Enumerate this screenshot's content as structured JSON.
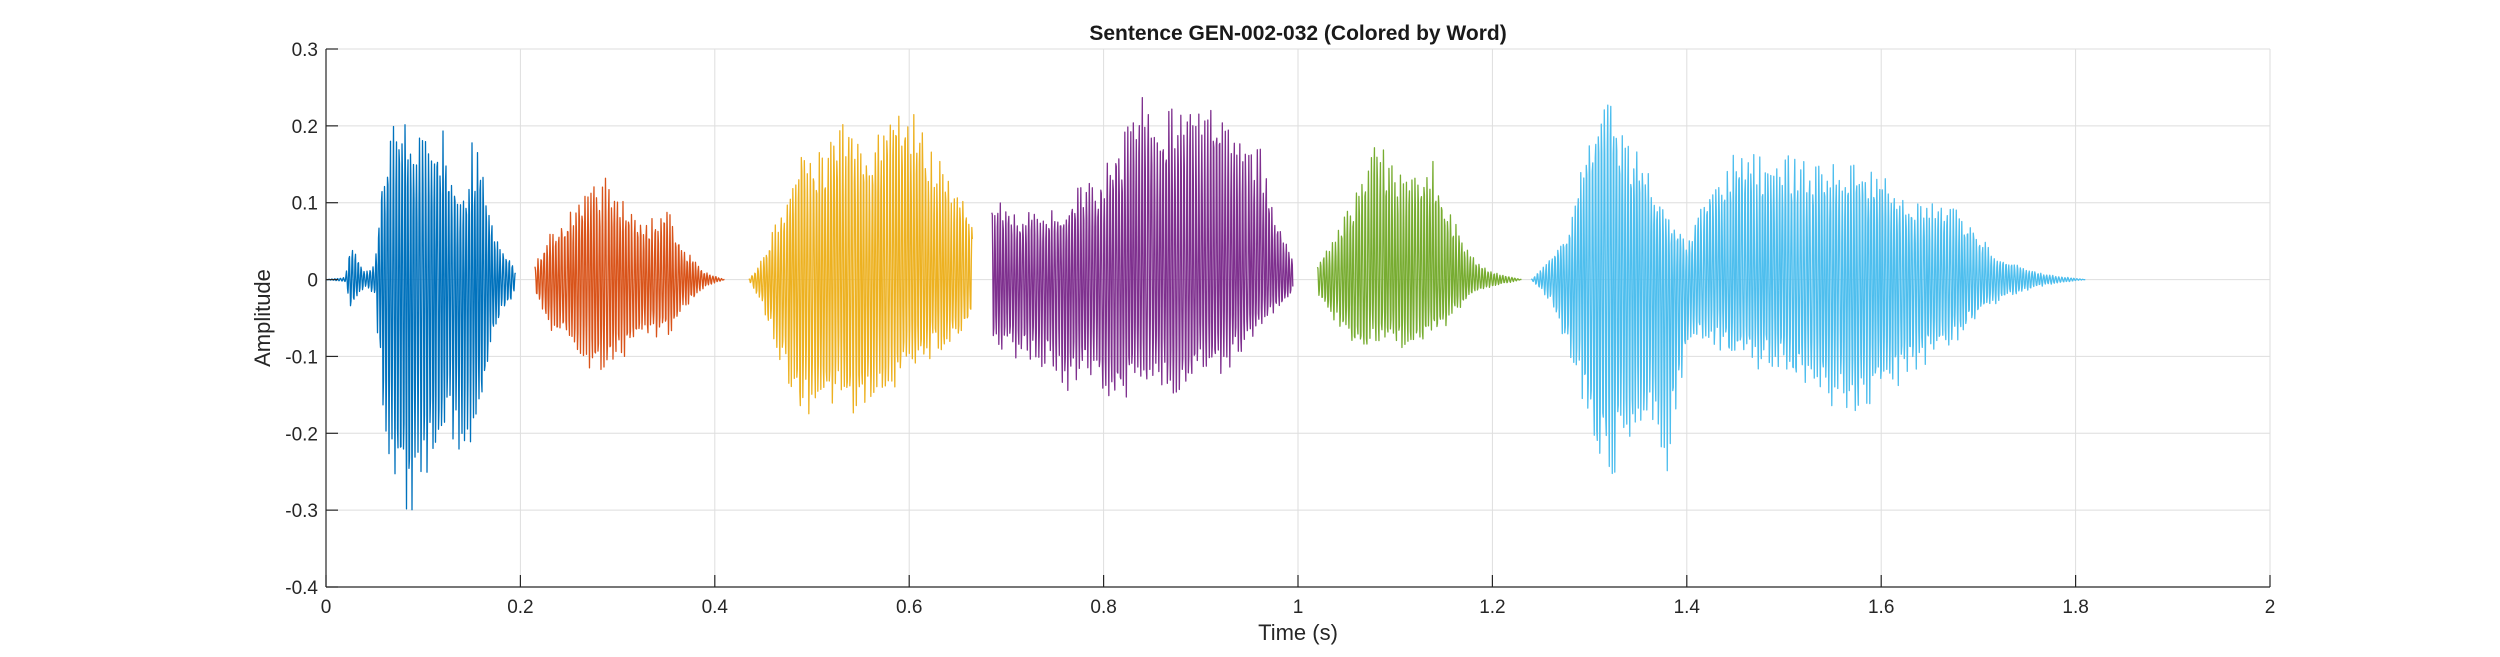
{
  "chart_data": {
    "type": "line",
    "title": "Sentence GEN-002-032 (Colored by Word)",
    "xlabel": "Time (s)",
    "ylabel": "Amplitude",
    "xlim": [
      0,
      2
    ],
    "ylim": [
      -0.4,
      0.3
    ],
    "xticks": [
      0,
      0.2,
      0.4,
      0.6,
      0.8,
      1,
      1.2,
      1.4,
      1.6,
      1.8,
      2
    ],
    "xtick_labels": [
      "0",
      "0.2",
      "0.4",
      "0.6",
      "0.8",
      "1",
      "1.2",
      "1.4",
      "1.6",
      "1.8",
      "2"
    ],
    "yticks": [
      -0.4,
      -0.3,
      -0.2,
      -0.1,
      0,
      0.1,
      0.2,
      0.3
    ],
    "ytick_labels": [
      "-0.4",
      "-0.3",
      "-0.2",
      "-0.1",
      "0",
      "0.1",
      "0.2",
      "0.3"
    ],
    "grid": true,
    "legend": "none",
    "series": [
      {
        "color": "#0072BD",
        "t_start": 0.0,
        "t_end": 0.195,
        "x": [
          0.0,
          0.02,
          0.025,
          0.04,
          0.05,
          0.06,
          0.07,
          0.08,
          0.09,
          0.1,
          0.11,
          0.12,
          0.13,
          0.14,
          0.15,
          0.16,
          0.17,
          0.18,
          0.19,
          0.195
        ],
        "envelope_upper": [
          0.0,
          0.003,
          0.05,
          0.01,
          0.02,
          0.17,
          0.21,
          0.22,
          0.21,
          0.2,
          0.18,
          0.2,
          0.15,
          0.1,
          0.18,
          0.18,
          0.08,
          0.04,
          0.03,
          0.01
        ],
        "envelope_lower": [
          0.0,
          -0.003,
          -0.04,
          -0.01,
          -0.02,
          -0.2,
          -0.28,
          -0.32,
          -0.3,
          -0.28,
          -0.26,
          -0.25,
          -0.22,
          -0.24,
          -0.22,
          -0.18,
          -0.1,
          -0.05,
          -0.03,
          -0.01
        ]
      },
      {
        "color": "#D95319",
        "t_start": 0.215,
        "t_end": 0.41,
        "x": [
          0.215,
          0.23,
          0.25,
          0.27,
          0.29,
          0.31,
          0.33,
          0.35,
          0.37,
          0.39,
          0.41
        ],
        "envelope_upper": [
          0.02,
          0.06,
          0.09,
          0.13,
          0.14,
          0.1,
          0.08,
          0.1,
          0.04,
          0.01,
          0.0
        ],
        "envelope_lower": [
          -0.02,
          -0.07,
          -0.09,
          -0.12,
          -0.13,
          -0.1,
          -0.08,
          -0.08,
          -0.04,
          -0.01,
          0.0
        ]
      },
      {
        "color": "#EDB120",
        "t_start": 0.435,
        "t_end": 0.665,
        "x": [
          0.435,
          0.45,
          0.47,
          0.49,
          0.51,
          0.53,
          0.55,
          0.57,
          0.59,
          0.61,
          0.63,
          0.65,
          0.665
        ],
        "envelope_upper": [
          0.0,
          0.03,
          0.1,
          0.19,
          0.17,
          0.23,
          0.19,
          0.2,
          0.24,
          0.21,
          0.16,
          0.13,
          0.08
        ],
        "envelope_lower": [
          0.0,
          -0.04,
          -0.12,
          -0.19,
          -0.17,
          -0.17,
          -0.19,
          -0.17,
          -0.14,
          -0.12,
          -0.1,
          -0.08,
          -0.05
        ]
      },
      {
        "color": "#7E2F8E",
        "t_start": 0.685,
        "t_end": 0.995,
        "x": [
          0.685,
          0.7,
          0.72,
          0.74,
          0.76,
          0.78,
          0.8,
          0.82,
          0.84,
          0.86,
          0.88,
          0.9,
          0.92,
          0.94,
          0.96,
          0.98,
          0.995
        ],
        "envelope_upper": [
          0.11,
          0.1,
          0.09,
          0.09,
          0.1,
          0.13,
          0.15,
          0.2,
          0.25,
          0.22,
          0.24,
          0.22,
          0.23,
          0.2,
          0.18,
          0.08,
          0.03
        ],
        "envelope_lower": [
          -0.09,
          -0.1,
          -0.11,
          -0.12,
          -0.15,
          -0.13,
          -0.16,
          -0.17,
          -0.14,
          -0.15,
          -0.16,
          -0.12,
          -0.13,
          -0.1,
          -0.07,
          -0.04,
          -0.02
        ]
      },
      {
        "color": "#77AC30",
        "t_start": 1.02,
        "t_end": 1.23,
        "x": [
          1.02,
          1.04,
          1.06,
          1.08,
          1.1,
          1.12,
          1.14,
          1.16,
          1.18,
          1.2,
          1.23
        ],
        "envelope_upper": [
          0.02,
          0.06,
          0.13,
          0.2,
          0.14,
          0.15,
          0.16,
          0.08,
          0.03,
          0.01,
          0.0
        ],
        "envelope_lower": [
          -0.02,
          -0.06,
          -0.1,
          -0.09,
          -0.1,
          -0.09,
          -0.08,
          -0.05,
          -0.02,
          -0.01,
          0.0
        ]
      },
      {
        "color": "#4DBEEE",
        "t_start": 1.24,
        "t_end": 1.81,
        "x": [
          1.24,
          1.26,
          1.28,
          1.3,
          1.32,
          1.34,
          1.36,
          1.38,
          1.4,
          1.42,
          1.44,
          1.46,
          1.48,
          1.5,
          1.52,
          1.54,
          1.56,
          1.58,
          1.6,
          1.62,
          1.64,
          1.66,
          1.68,
          1.7,
          1.72,
          1.74,
          1.76,
          1.78,
          1.81
        ],
        "envelope_upper": [
          0.0,
          0.03,
          0.08,
          0.2,
          0.25,
          0.2,
          0.15,
          0.1,
          0.05,
          0.12,
          0.16,
          0.18,
          0.16,
          0.17,
          0.16,
          0.15,
          0.16,
          0.15,
          0.15,
          0.12,
          0.1,
          0.1,
          0.09,
          0.06,
          0.03,
          0.02,
          0.01,
          0.005,
          0.0
        ],
        "envelope_lower": [
          0.0,
          -0.03,
          -0.1,
          -0.22,
          -0.27,
          -0.22,
          -0.2,
          -0.25,
          -0.1,
          -0.08,
          -0.1,
          -0.11,
          -0.12,
          -0.13,
          -0.15,
          -0.16,
          -0.17,
          -0.18,
          -0.16,
          -0.14,
          -0.12,
          -0.1,
          -0.08,
          -0.05,
          -0.03,
          -0.02,
          -0.01,
          -0.005,
          0.0
        ]
      }
    ]
  }
}
